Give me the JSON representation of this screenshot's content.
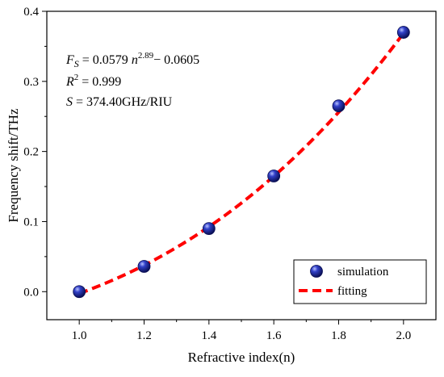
{
  "chart_data": {
    "type": "scatter",
    "xlabel": "Refractive index(n)",
    "ylabel": "Frequency shift/THz",
    "xlim": [
      0.9,
      2.1
    ],
    "ylim": [
      -0.04,
      0.4
    ],
    "x_ticks": [
      "1.0",
      "1.2",
      "1.4",
      "1.6",
      "1.8",
      "2.0"
    ],
    "y_ticks": [
      "0.0",
      "0.1",
      "0.2",
      "0.3",
      "0.4"
    ],
    "series": [
      {
        "name": "simulation",
        "kind": "scatter",
        "color": "#1f2a9c",
        "x": [
          1.0,
          1.2,
          1.4,
          1.6,
          1.8,
          2.0
        ],
        "y": [
          0.0,
          0.036,
          0.09,
          0.165,
          0.265,
          0.37
        ]
      },
      {
        "name": "fitting",
        "kind": "line",
        "style": "dashed",
        "color": "#ff0000",
        "formula": {
          "a": 0.0579,
          "b": 2.89,
          "c": -0.0605
        },
        "x_range": [
          1.0,
          2.0
        ]
      }
    ],
    "annotations": {
      "fs_F": "F",
      "fs_sub": "S",
      "fs_eq": " = 0.0579 ",
      "fs_n": "n",
      "fs_exp": "2.89",
      "fs_rest": "− 0.0605",
      "r2_R": "R",
      "r2_sup": "2",
      "r2_rest": " = 0.999",
      "s_S": "S",
      "s_rest": " = 374.40GHz/RIU"
    },
    "legend": {
      "position": "bottom-right"
    }
  }
}
